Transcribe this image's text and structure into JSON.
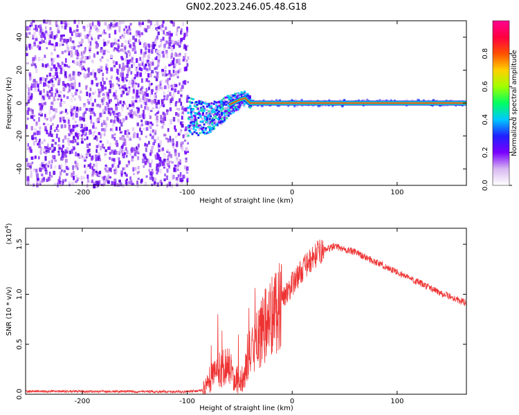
{
  "title": "GN02.2023.246.05.48.G18",
  "chart_data": [
    {
      "type": "heatmap",
      "xlabel": "Height of straight line (km)",
      "ylabel": "Frequency (Hz)",
      "xlim": [
        -254,
        166
      ],
      "ylim": [
        -50,
        50
      ],
      "x_ticks": [
        -200,
        -100,
        0,
        100
      ],
      "y_ticks": [
        -40,
        -20,
        0,
        20,
        40
      ],
      "colorbar": {
        "label": "Normalized spectral amplitude",
        "range": [
          0,
          1
        ],
        "ticks": [
          "0.0",
          "0.2",
          "0.4",
          "0.6",
          "0.8"
        ],
        "colors": [
          "#ffffff",
          "#d8b8f0",
          "#7a00ff",
          "#2020ff",
          "#00c8ff",
          "#00ff60",
          "#a0ff00",
          "#ffd000",
          "#ff5000",
          "#ff0040",
          "#ff0090"
        ]
      },
      "noise_region_x": [
        -254,
        -100
      ],
      "signal_track": [
        {
          "x": -100,
          "y": -8
        },
        {
          "x": -90,
          "y": -9
        },
        {
          "x": -80,
          "y": -9
        },
        {
          "x": -70,
          "y": -6
        },
        {
          "x": -60,
          "y": -1
        },
        {
          "x": -50,
          "y": 2
        },
        {
          "x": -45,
          "y": 3
        },
        {
          "x": -40,
          "y": 0
        },
        {
          "x": 0,
          "y": 0
        },
        {
          "x": 166,
          "y": 0
        }
      ],
      "grid": false
    },
    {
      "type": "line",
      "xlabel": "Height of straight line (km)",
      "ylabel": "SNR (10 * v/v)",
      "y_exponent_label": "(x10",
      "y_exponent": "4",
      "xlim": [
        -254,
        166
      ],
      "ylim": [
        0,
        16600
      ],
      "x_ticks": [
        -200,
        -100,
        0,
        100
      ],
      "y_tick_labels": [
        "0.0",
        "0.5",
        "1.0",
        "1.5"
      ],
      "y_tick_values": [
        0,
        5000,
        10000,
        15000
      ],
      "series_color": "#ee3333",
      "envelope": [
        {
          "x": -254,
          "y": 300
        },
        {
          "x": -100,
          "y": 250
        },
        {
          "x": -85,
          "y": 400
        },
        {
          "x": -75,
          "y": 2000
        },
        {
          "x": -62,
          "y": 3000
        },
        {
          "x": -50,
          "y": 1000
        },
        {
          "x": -40,
          "y": 4000
        },
        {
          "x": -25,
          "y": 7000
        },
        {
          "x": -10,
          "y": 9500
        },
        {
          "x": 10,
          "y": 12500
        },
        {
          "x": 25,
          "y": 14200
        },
        {
          "x": 40,
          "y": 14800
        },
        {
          "x": 60,
          "y": 14200
        },
        {
          "x": 100,
          "y": 12200
        },
        {
          "x": 140,
          "y": 10200
        },
        {
          "x": 166,
          "y": 9100
        }
      ],
      "grid": false
    }
  ]
}
